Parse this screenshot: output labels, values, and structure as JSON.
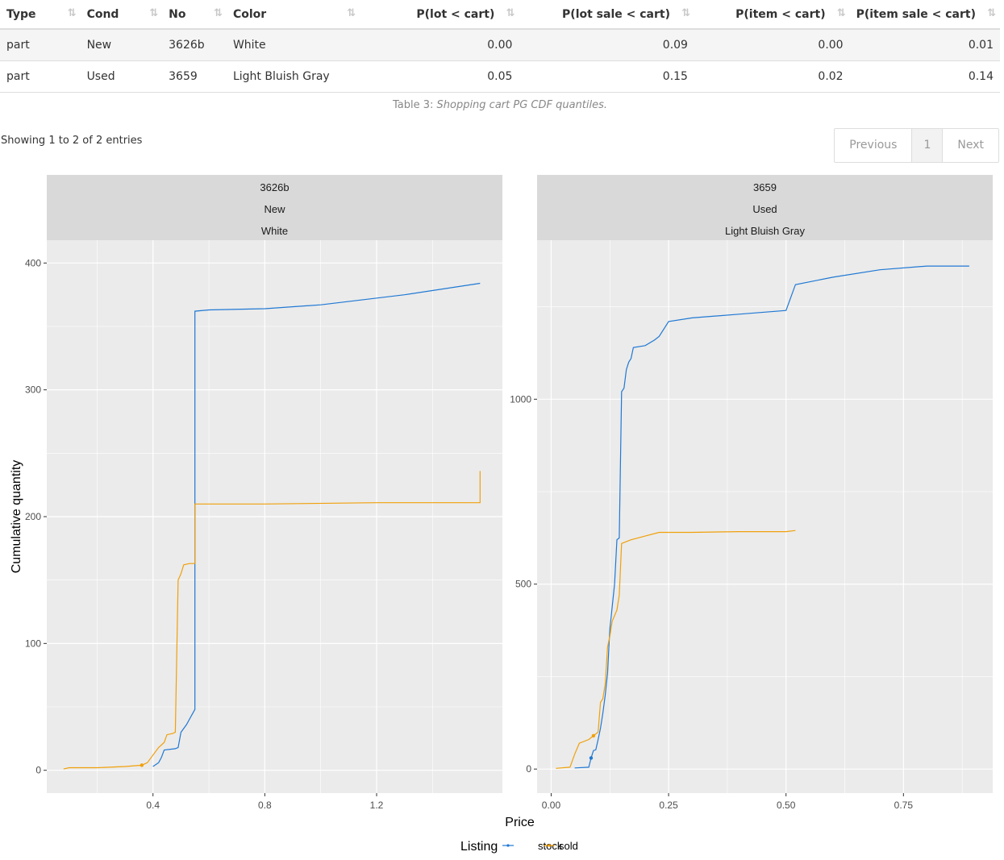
{
  "table": {
    "headers": [
      "Type",
      "Cond",
      "No",
      "Color",
      "P(lot < cart)",
      "P(lot sale < cart)",
      "P(item < cart)",
      "P(item sale < cart)"
    ],
    "rows": [
      [
        "part",
        "New",
        "3626b",
        "White",
        "0.00",
        "0.09",
        "0.00",
        "0.01"
      ],
      [
        "part",
        "Used",
        "3659",
        "Light Bluish Gray",
        "0.05",
        "0.15",
        "0.02",
        "0.14"
      ]
    ],
    "caption_prefix": "Table 3:",
    "caption_text": "Shopping cart PG CDF quantiles.",
    "info": "Showing 1 to 2 of 2 entries",
    "pager": {
      "previous": "Previous",
      "current": "1",
      "next": "Next"
    }
  },
  "colors": {
    "stock": "#1f78d4",
    "sold": "#f0a00a",
    "panel_bg": "#ebebeb",
    "strip_bg": "#d9d9d9",
    "grid": "#ffffff"
  },
  "chart_data": [
    {
      "type": "line",
      "strip": [
        "3626b",
        "New",
        "White"
      ],
      "xlim": [
        0.02,
        1.65
      ],
      "ylim": [
        -18,
        418
      ],
      "xticks": [
        0.4,
        0.8,
        1.2
      ],
      "xtick_labels": [
        "0.4",
        "0.8",
        "1.2"
      ],
      "yticks": [
        0,
        100,
        200,
        300,
        400
      ],
      "ytick_labels": [
        "0",
        "100",
        "200",
        "300",
        "400"
      ],
      "series": [
        {
          "name": "stock",
          "points": [
            [
              0.4,
              3
            ],
            [
              0.42,
              6
            ],
            [
              0.43,
              10
            ],
            [
              0.44,
              16
            ],
            [
              0.48,
              17
            ],
            [
              0.49,
              18
            ],
            [
              0.5,
              30
            ],
            [
              0.52,
              36
            ],
            [
              0.54,
              44
            ],
            [
              0.55,
              48
            ],
            [
              0.55,
              362
            ],
            [
              0.6,
              363
            ],
            [
              0.8,
              364
            ],
            [
              1.0,
              367
            ],
            [
              1.3,
              375
            ],
            [
              1.57,
              384
            ]
          ]
        },
        {
          "name": "sold",
          "points": [
            [
              0.08,
              1
            ],
            [
              0.1,
              2
            ],
            [
              0.2,
              2
            ],
            [
              0.3,
              3
            ],
            [
              0.36,
              4
            ],
            [
              0.37,
              5
            ],
            [
              0.38,
              6
            ],
            [
              0.4,
              12
            ],
            [
              0.42,
              18
            ],
            [
              0.44,
              22
            ],
            [
              0.45,
              28
            ],
            [
              0.47,
              29
            ],
            [
              0.48,
              30
            ],
            [
              0.49,
              150
            ],
            [
              0.5,
              155
            ],
            [
              0.51,
              162
            ],
            [
              0.53,
              163
            ],
            [
              0.54,
              163
            ],
            [
              0.55,
              163
            ],
            [
              0.55,
              210
            ],
            [
              0.8,
              210
            ],
            [
              1.2,
              211
            ],
            [
              1.57,
              211
            ],
            [
              1.57,
              236
            ]
          ],
          "marker": [
            0.36,
            4
          ]
        }
      ]
    },
    {
      "type": "line",
      "strip": [
        "3659",
        "Used",
        "Light Bluish Gray"
      ],
      "xlim": [
        -0.03,
        0.94
      ],
      "ylim": [
        -65,
        1430
      ],
      "xticks": [
        0.0,
        0.25,
        0.5,
        0.75
      ],
      "xtick_labels": [
        "0.00",
        "0.25",
        "0.50",
        "0.75"
      ],
      "yticks": [
        0,
        500,
        1000
      ],
      "ytick_labels": [
        "0",
        "500",
        "1000"
      ],
      "series": [
        {
          "name": "stock",
          "points": [
            [
              0.05,
              3
            ],
            [
              0.08,
              5
            ],
            [
              0.085,
              30
            ],
            [
              0.09,
              50
            ],
            [
              0.095,
              52
            ],
            [
              0.1,
              80
            ],
            [
              0.105,
              110
            ],
            [
              0.11,
              150
            ],
            [
              0.115,
              200
            ],
            [
              0.12,
              260
            ],
            [
              0.125,
              380
            ],
            [
              0.13,
              440
            ],
            [
              0.135,
              500
            ],
            [
              0.14,
              620
            ],
            [
              0.145,
              625
            ],
            [
              0.15,
              1020
            ],
            [
              0.155,
              1030
            ],
            [
              0.16,
              1080
            ],
            [
              0.165,
              1100
            ],
            [
              0.17,
              1110
            ],
            [
              0.175,
              1140
            ],
            [
              0.2,
              1145
            ],
            [
              0.22,
              1160
            ],
            [
              0.23,
              1170
            ],
            [
              0.25,
              1210
            ],
            [
              0.3,
              1220
            ],
            [
              0.4,
              1230
            ],
            [
              0.5,
              1240
            ],
            [
              0.52,
              1310
            ],
            [
              0.6,
              1330
            ],
            [
              0.7,
              1350
            ],
            [
              0.8,
              1360
            ],
            [
              0.89,
              1360
            ]
          ],
          "marker": [
            0.085,
            30
          ]
        },
        {
          "name": "sold",
          "points": [
            [
              0.01,
              2
            ],
            [
              0.04,
              5
            ],
            [
              0.05,
              40
            ],
            [
              0.06,
              70
            ],
            [
              0.08,
              80
            ],
            [
              0.09,
              90
            ],
            [
              0.1,
              100
            ],
            [
              0.105,
              180
            ],
            [
              0.11,
              190
            ],
            [
              0.115,
              230
            ],
            [
              0.12,
              330
            ],
            [
              0.125,
              360
            ],
            [
              0.13,
              400
            ],
            [
              0.14,
              430
            ],
            [
              0.145,
              470
            ],
            [
              0.15,
              610
            ],
            [
              0.17,
              620
            ],
            [
              0.2,
              630
            ],
            [
              0.23,
              640
            ],
            [
              0.3,
              640
            ],
            [
              0.4,
              642
            ],
            [
              0.5,
              642
            ],
            [
              0.52,
              645
            ]
          ],
          "marker": [
            0.09,
            90
          ]
        }
      ]
    }
  ],
  "axis": {
    "xlabel": "Price",
    "ylabel": "Cumulative quantity"
  },
  "legend": {
    "title": "Listing",
    "items": [
      "stock",
      "sold"
    ],
    "position": "bottom"
  }
}
